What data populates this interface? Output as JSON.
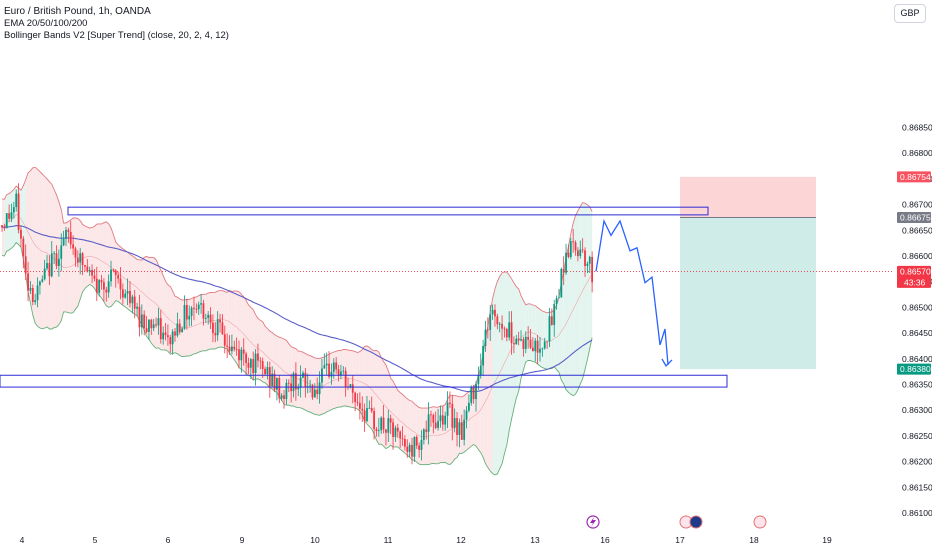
{
  "legend": {
    "symbol": "Euro / British Pound, 1h, OANDA",
    "ema": "EMA 20/50/100/200",
    "bb": "Bollinger Bands V2 [Super Trend] (close, 20, 2, 4, 12)"
  },
  "currency_button": "GBP",
  "price_tags": {
    "target_top": "0.86754",
    "entry": "0.86675",
    "current": "0.86570",
    "countdown": "43:36",
    "target_bottom": "0.86380"
  },
  "colors": {
    "bull": "#089981",
    "bear": "#f23645",
    "ema": "#5b5ec7",
    "zone": "#2b2bd6",
    "projection": "#2962ff",
    "stop_fill": "#fcd6d6",
    "target_fill": "#cfece8"
  },
  "chart_data": {
    "type": "candlestick",
    "ylim": [
      0.8608,
      0.8689
    ],
    "y_ticks": [
      "0.86850",
      "0.86800",
      "0.86750",
      "0.86700",
      "0.86650",
      "0.86600",
      "0.86550",
      "0.86500",
      "0.86450",
      "0.86400",
      "0.86350",
      "0.86300",
      "0.86250",
      "0.86200",
      "0.86150",
      "0.86100"
    ],
    "x_ticks": [
      "4",
      "5",
      "6",
      "9",
      "10",
      "11",
      "12",
      "13",
      "16",
      "17",
      "18",
      "19"
    ],
    "zones": [
      {
        "name": "resistance",
        "from": 0.8668,
        "to": 0.86695
      },
      {
        "name": "support",
        "from": 0.86345,
        "to": 0.86368
      }
    ],
    "position": {
      "entry": 0.86675,
      "stop": 0.86754,
      "target": 0.8638
    },
    "last_price": 0.8657,
    "projection_path_prices": [
      0.8657,
      0.86668,
      0.8664,
      0.86668,
      0.8661,
      0.86616,
      0.86548,
      0.86559,
      0.86427,
      0.86458,
      0.86388
    ]
  }
}
